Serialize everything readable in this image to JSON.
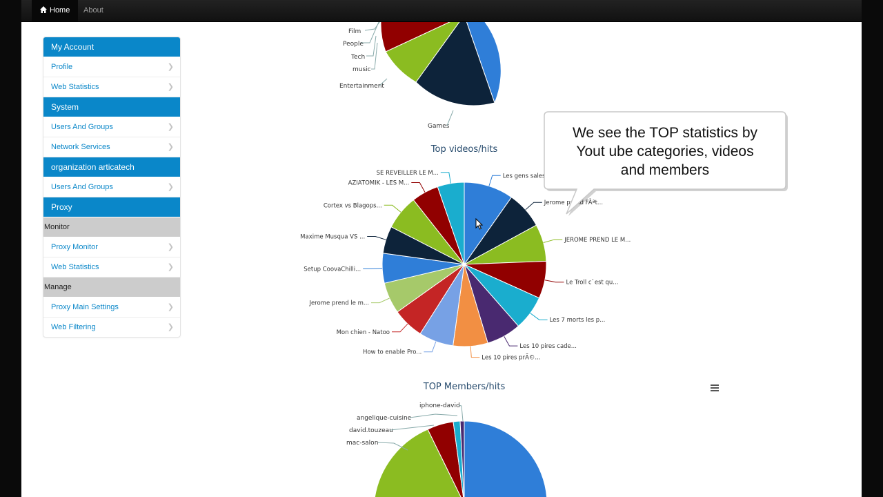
{
  "navbar": {
    "home_label": "Home",
    "about_label": "About"
  },
  "sidebar": {
    "sections": [
      {
        "type": "header",
        "label": "My Account"
      },
      {
        "type": "item",
        "label": "Profile"
      },
      {
        "type": "item",
        "label": "Web Statistics"
      },
      {
        "type": "header",
        "label": "System"
      },
      {
        "type": "item",
        "label": "Users And Groups"
      },
      {
        "type": "item",
        "label": "Network Services"
      },
      {
        "type": "header",
        "label": "organization articatech"
      },
      {
        "type": "item",
        "label": "Users And Groups"
      },
      {
        "type": "header",
        "label": "Proxy"
      },
      {
        "type": "group",
        "label": "Monitor"
      },
      {
        "type": "item",
        "label": "Proxy Monitor"
      },
      {
        "type": "item",
        "label": "Web Statistics"
      },
      {
        "type": "group",
        "label": "Manage"
      },
      {
        "type": "item",
        "label": "Proxy Main Settings"
      },
      {
        "type": "item",
        "label": "Web Filtering"
      }
    ]
  },
  "callout": {
    "lines": [
      "We see the TOP statistics by",
      "Yout ube categories, videos",
      "and members"
    ]
  },
  "colors": {
    "accent": "#0a87c9",
    "palette": [
      "#2f7ed8",
      "#0d233a",
      "#8bbc21",
      "#910000",
      "#1aadce",
      "#492970",
      "#f28f43",
      "#77a1e5",
      "#c42525",
      "#a6c96a"
    ]
  },
  "icons": {
    "home": "home-icon",
    "chevron": "chevron-right-icon",
    "menu": "hamburger-menu-icon",
    "cursor": "mouse-cursor-icon"
  },
  "chart_data": [
    {
      "type": "pie",
      "title": "",
      "labels": [
        "Games",
        "Entertainment",
        "music",
        "Tech",
        "People",
        "Film"
      ],
      "note": "Top of chart scrolled out of view; large unlabeled blue slice on the right"
    },
    {
      "type": "pie",
      "title": "Top videos/hits",
      "labels": [
        "Les gens sales...",
        "Jerome prend FÃªt...",
        "JEROME PREND LE M...",
        "Le Troll c`est qu...",
        "Les 7 morts les p...",
        "Les 10 pires cade...",
        "Les 10 pires prÃ©...",
        "How to enable Pro...",
        "Mon chien - Natoo",
        "Jerome prend le m...",
        "Setup CoovaChilli...",
        "Maxime Musqua VS ...",
        "Cortex vs Blagops...",
        "AZIATOMIK - LES M...",
        "SE REVEILLER LE M..."
      ],
      "values": [
        10,
        7.5,
        7.5,
        7.5,
        7,
        7,
        7,
        7,
        6.3,
        6.3,
        6,
        5.5,
        7,
        5.5,
        5.4
      ]
    },
    {
      "type": "pie",
      "title": "TOP Members/hits",
      "labels": [
        "iphone-david",
        "angelique-cuisine",
        "david.touzeau",
        "mac-salon"
      ],
      "note": "Bottom of chart cut off by viewport"
    }
  ]
}
